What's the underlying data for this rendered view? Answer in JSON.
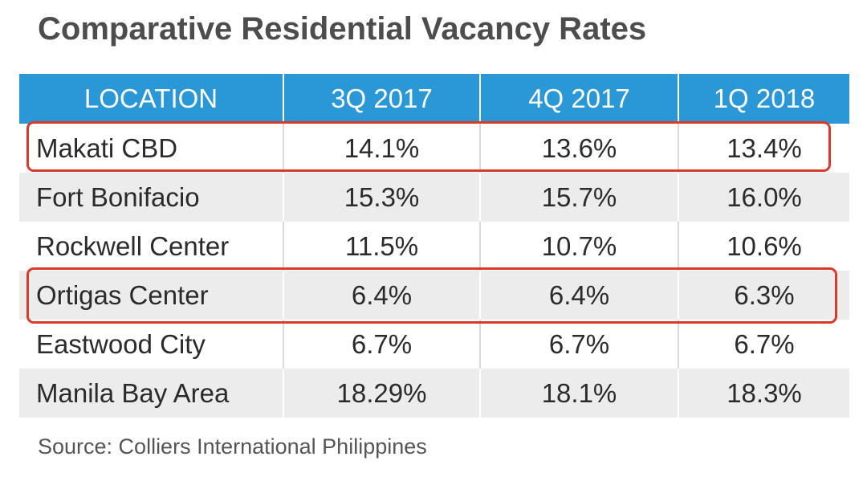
{
  "title": "Comparative Residential Vacancy Rates",
  "source": "Source: Colliers International Philippines",
  "colors": {
    "header_bg": "#2a98d6",
    "header_text": "#ffffff",
    "highlight": "#d93a2b",
    "alt_row": "#ececec"
  },
  "chart_data": {
    "type": "table",
    "title": "Comparative Residential Vacancy Rates",
    "columns": [
      "LOCATION",
      "3Q 2017",
      "4Q 2017",
      "1Q 2018"
    ],
    "rows": [
      [
        "Makati CBD",
        "14.1%",
        "13.6%",
        "13.4%"
      ],
      [
        "Fort Bonifacio",
        "15.3%",
        "15.7%",
        "16.0%"
      ],
      [
        "Rockwell Center",
        "11.5%",
        "10.7%",
        "10.6%"
      ],
      [
        "Ortigas Center",
        "6.4%",
        "6.4%",
        "6.3%"
      ],
      [
        "Eastwood City",
        "6.7%",
        "6.7%",
        "6.7%"
      ],
      [
        "Manila Bay Area",
        "18.29%",
        "18.1%",
        "18.3%"
      ]
    ],
    "highlighted_rows": [
      "Makati CBD",
      "Ortigas Center"
    ]
  }
}
